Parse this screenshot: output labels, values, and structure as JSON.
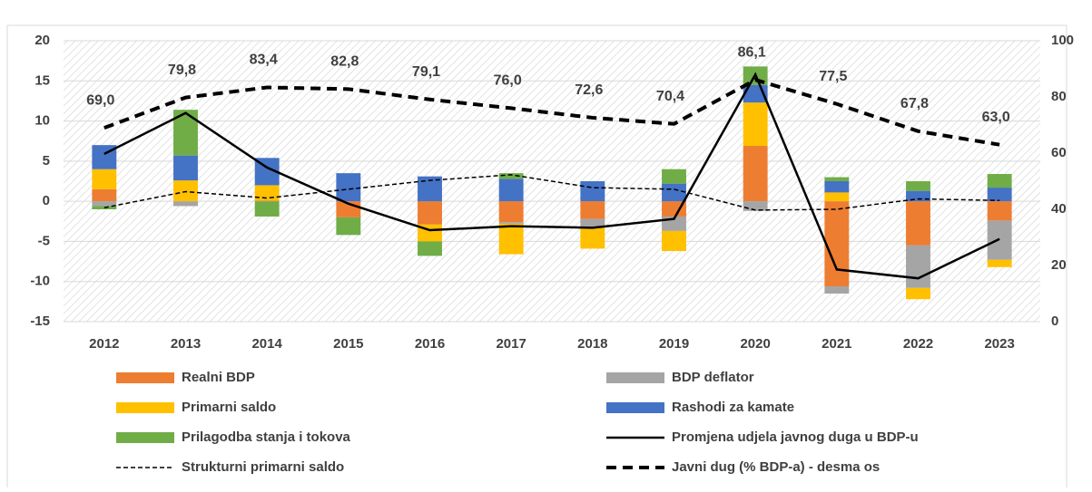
{
  "chart_data": {
    "type": "bar",
    "categories": [
      "2012",
      "2013",
      "2014",
      "2015",
      "2016",
      "2017",
      "2018",
      "2019",
      "2020",
      "2021",
      "2022",
      "2023"
    ],
    "series": [
      {
        "name": "Realni BDP",
        "kind": "bar",
        "color": "#ed7d31",
        "values": [
          1.5,
          0,
          0.1,
          -2.0,
          -2.9,
          -2.6,
          -2.2,
          -1.9,
          6.9,
          -10.6,
          -5.5,
          -2.4
        ]
      },
      {
        "name": "BDP deflator",
        "kind": "bar",
        "color": "#a5a5a5",
        "values": [
          -0.6,
          -0.6,
          0,
          0,
          0,
          -0.2,
          -1.1,
          -1.8,
          -1.2,
          -0.9,
          -5.3,
          -4.9
        ]
      },
      {
        "name": "Primarni saldo",
        "kind": "bar",
        "color": "#ffc000",
        "values": [
          2.5,
          2.6,
          1.9,
          0,
          -2.1,
          -3.8,
          -2.6,
          -2.5,
          5.4,
          1.1,
          -1.4,
          -0.9
        ]
      },
      {
        "name": "Rashodi za kamate",
        "kind": "bar",
        "color": "#4472c4",
        "values": [
          3.0,
          3.1,
          3.4,
          3.5,
          3.1,
          2.8,
          2.5,
          2.2,
          2.2,
          1.4,
          1.3,
          1.7
        ]
      },
      {
        "name": "Prilagodba stanja i tokova",
        "kind": "bar",
        "color": "#70ad47",
        "values": [
          -0.4,
          5.7,
          -1.9,
          -2.2,
          -1.8,
          0.7,
          0,
          1.8,
          2.3,
          0.5,
          1.2,
          1.7
        ]
      },
      {
        "name": "Promjena udjela javnog duga u BDP-u",
        "kind": "line",
        "style": "solid",
        "color": "#000000",
        "values": [
          5.9,
          11.0,
          4.2,
          -0.3,
          -3.6,
          -3.1,
          -3.3,
          -2.2,
          15.8,
          -8.5,
          -9.6,
          -4.7
        ]
      },
      {
        "name": "Strukturni primarni saldo",
        "kind": "line",
        "style": "dotted",
        "color": "#000000",
        "values": [
          -0.8,
          1.2,
          0.4,
          1.5,
          2.6,
          3.3,
          1.7,
          1.5,
          -1.1,
          -1.0,
          0.3,
          0.1
        ]
      },
      {
        "name": "Javni dug (% BDP-a) - desma os",
        "kind": "line",
        "style": "dashed",
        "axis": "y2",
        "color": "#000000",
        "values": [
          69.0,
          79.8,
          83.4,
          82.8,
          79.1,
          76.0,
          72.6,
          70.4,
          86.1,
          77.5,
          67.8,
          63.0
        ],
        "value_labels": [
          "69,0",
          "79,8",
          "83,4",
          "82,8",
          "79,1",
          "76,0",
          "72,6",
          "70,4",
          "86,1",
          "77,5",
          "67,8",
          "63,0"
        ]
      }
    ],
    "ylim": [
      -15,
      20
    ],
    "yticks": [
      -15,
      -10,
      -5,
      0,
      5,
      10,
      15,
      20
    ],
    "y2lim": [
      0,
      100
    ],
    "y2ticks": [
      0,
      20,
      40,
      60,
      80,
      100
    ],
    "grid": true
  }
}
